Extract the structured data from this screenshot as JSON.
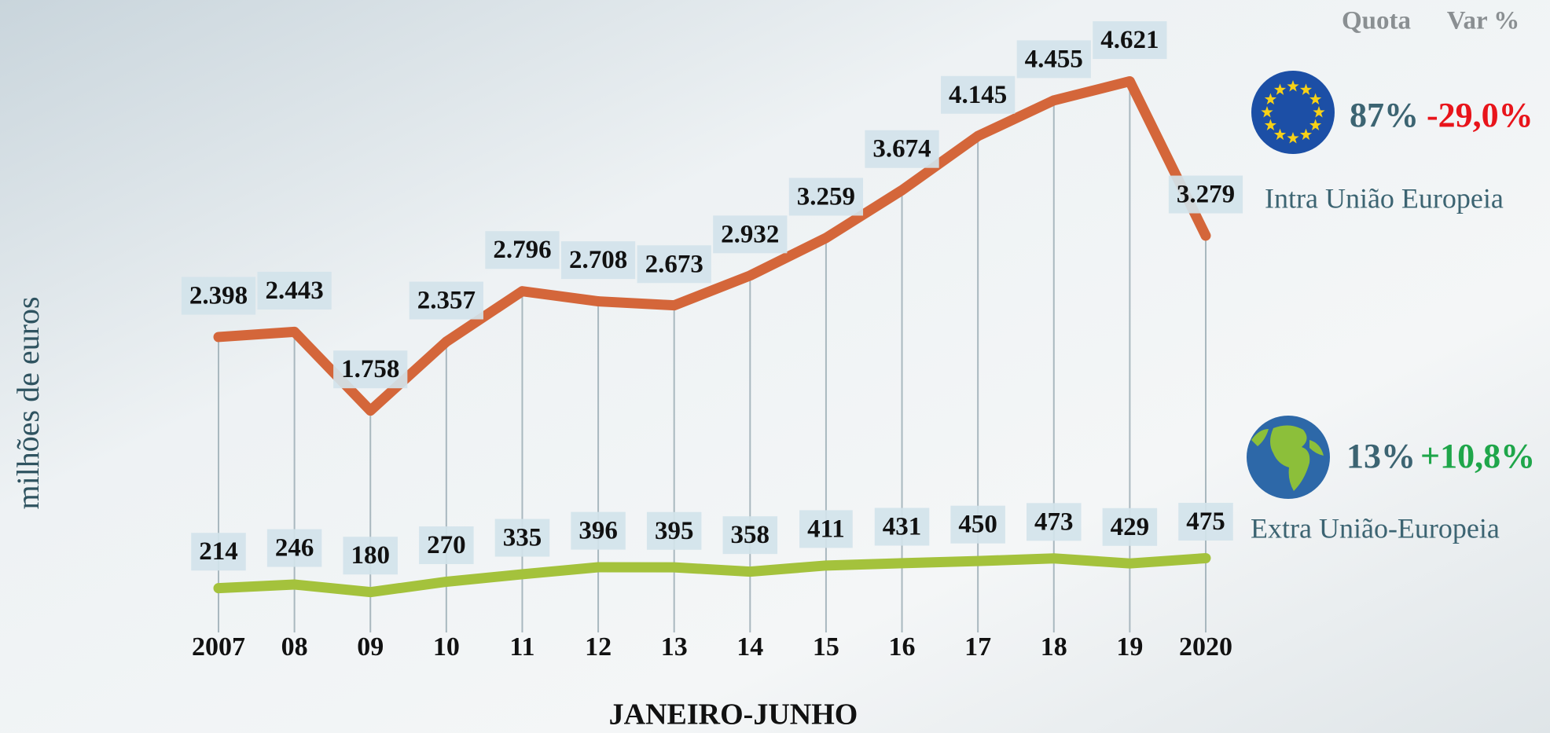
{
  "chart_data": {
    "type": "line",
    "x_label": "JANEIRO-JUNHO",
    "y_label": "milhões de euros",
    "legend_headers": [
      "Quota",
      "Var %"
    ],
    "categories": [
      "2007",
      "08",
      "09",
      "10",
      "11",
      "12",
      "13",
      "14",
      "15",
      "16",
      "17",
      "18",
      "19",
      "2020"
    ],
    "ylim": [
      0,
      5000
    ],
    "series": [
      {
        "name": "Intra União Europeia",
        "color": "#d4663a",
        "share": "87%",
        "change": "-29,0%",
        "values": [
          2398,
          2443,
          1758,
          2357,
          2796,
          2708,
          2673,
          2932,
          3259,
          3674,
          4145,
          4455,
          4621,
          3279
        ],
        "value_labels": [
          "2.398",
          "2.443",
          "1.758",
          "2.357",
          "2.796",
          "2.708",
          "2.673",
          "2.932",
          "3.259",
          "3.674",
          "4.145",
          "4.455",
          "4.621",
          "3.279"
        ]
      },
      {
        "name": "Extra União-Europeia",
        "color": "#a4c23c",
        "share": "13%",
        "change": "+10,8%",
        "values": [
          214,
          246,
          180,
          270,
          335,
          396,
          395,
          358,
          411,
          431,
          450,
          473,
          429,
          475
        ]
      }
    ]
  }
}
